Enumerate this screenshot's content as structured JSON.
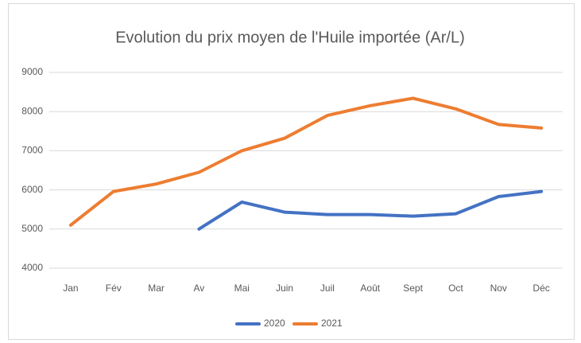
{
  "chart_data": {
    "type": "line",
    "title": "Evolution du prix moyen de l'Huile importée (Ar/L)",
    "categories": [
      "Jan",
      "Fév",
      "Mar",
      "Av",
      "Mai",
      "Juin",
      "Juil",
      "Août",
      "Sept",
      "Oct",
      "Nov",
      "Déc"
    ],
    "series": [
      {
        "name": "2020",
        "color": "#4472c4",
        "values": [
          null,
          null,
          null,
          5000,
          5690,
          5430,
          5370,
          5370,
          5330,
          5390,
          5830,
          5960
        ]
      },
      {
        "name": "2021",
        "color": "#ed7d31",
        "values": [
          5100,
          5960,
          6150,
          6450,
          7000,
          7320,
          7900,
          8150,
          8340,
          8070,
          7670,
          7580
        ]
      }
    ],
    "ylim": [
      4000,
      9000
    ],
    "yticks": [
      4000,
      5000,
      6000,
      7000,
      8000,
      9000
    ],
    "grid": true,
    "legend": "bottom"
  }
}
